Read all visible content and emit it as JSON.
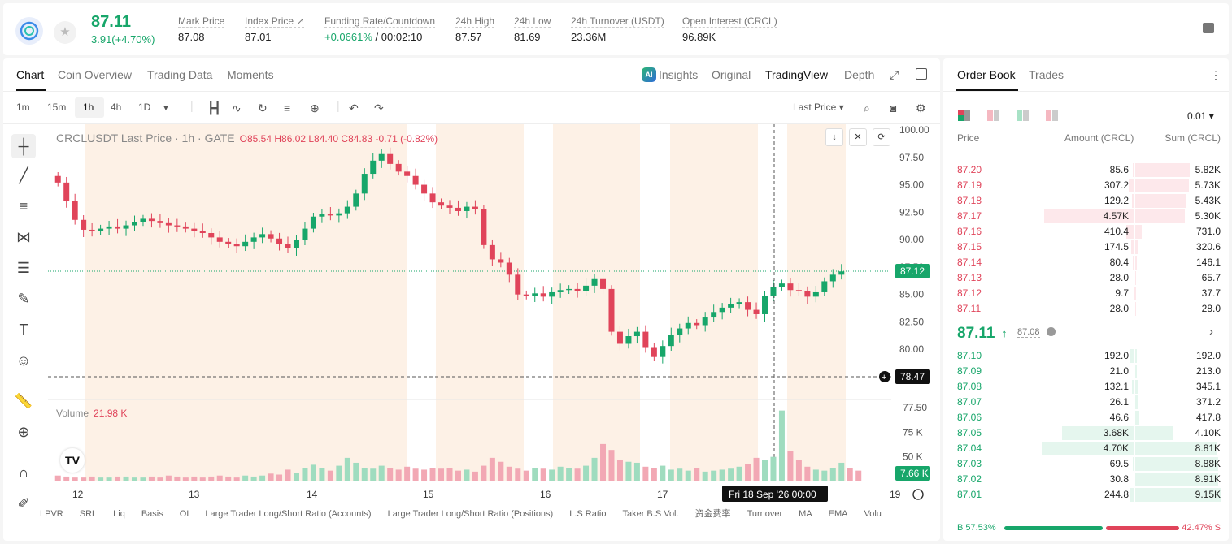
{
  "header": {
    "price": "87.11",
    "change": "3.91(+4.70%)",
    "stats": [
      {
        "label": "Mark Price",
        "value": "87.08"
      },
      {
        "label": "Index Price ↗",
        "value": "87.01"
      },
      {
        "label": "Funding Rate/Countdown",
        "value": "+0.0661%",
        "extra": "/ 00:02:10"
      },
      {
        "label": "24h High",
        "value": "87.57"
      },
      {
        "label": "24h Low",
        "value": "81.69"
      },
      {
        "label": "24h Turnover (USDT)",
        "value": "23.36M"
      },
      {
        "label": "Open Interest (CRCL)",
        "value": "96.89K"
      }
    ]
  },
  "chart_tabs": [
    "Chart",
    "Coin Overview",
    "Trading Data",
    "Moments"
  ],
  "chart_options": {
    "ai": "AI",
    "insights": "Insights",
    "original": "Original",
    "tradingview": "TradingView",
    "depth": "Depth"
  },
  "intervals": [
    "1m",
    "15m",
    "1h",
    "4h",
    "1D"
  ],
  "price_type": "Last Price",
  "legend": {
    "symbol": "CRCLUSDT Last Price · 1h · GATE",
    "ohlc": "O85.54  H86.02  L84.40  C84.83  -0.71  (-0.82%)"
  },
  "volume": {
    "label": "Volume",
    "value": "21.98 K"
  },
  "crosshair": {
    "date": "Fri 18 Sep '26",
    "time": "00:00"
  },
  "price_axis": {
    "ticks": [
      "100.00",
      "97.50",
      "95.00",
      "92.50",
      "90.00",
      "87.50",
      "85.00",
      "82.50",
      "80.00",
      "77.50",
      "75 K",
      "50 K",
      "25 K"
    ],
    "last_price_tag": "87.12",
    "cursor_tag": "78.47",
    "volume_tag": "7.66 K"
  },
  "time_axis": [
    "12",
    "13",
    "14",
    "15",
    "16",
    "17",
    "19"
  ],
  "bottom_tags": [
    "LPVR",
    "SRL",
    "Liq",
    "Basis",
    "OI",
    "Large Trader Long/Short Ratio (Accounts)",
    "Large Trader Long/Short Ratio (Positions)",
    "L.S Ratio",
    "Taker B.S Vol.",
    "资金费率",
    "Turnover",
    "MA",
    "EMA",
    "Volu"
  ],
  "chart_data": {
    "type": "candlestick",
    "title": "CRCLUSDT Last Price · 1h · GATE",
    "ylim": [
      77.5,
      100
    ],
    "last_price": 87.12,
    "x_day_labels": [
      "12",
      "13",
      "14",
      "15",
      "16",
      "17",
      "19"
    ],
    "close_path": [
      95.2,
      93.5,
      91.8,
      90.9,
      90.8,
      91.0,
      91.2,
      91.0,
      91.3,
      91.6,
      91.9,
      91.7,
      91.5,
      91.3,
      91.2,
      91.0,
      90.8,
      90.6,
      90.2,
      89.8,
      89.6,
      89.4,
      89.8,
      90.2,
      90.5,
      90.1,
      89.6,
      89.2,
      90.0,
      91.0,
      92.1,
      92.3,
      92.2,
      92.4,
      93.0,
      94.2,
      96.0,
      97.2,
      97.8,
      96.9,
      96.2,
      95.8,
      95.0,
      94.2,
      93.4,
      93.1,
      92.9,
      92.6,
      93.0,
      92.8,
      89.5,
      88.2,
      87.9,
      86.8,
      85.0,
      84.9,
      85.1,
      84.8,
      85.2,
      85.4,
      85.5,
      85.3,
      85.8,
      86.4,
      85.5,
      81.6,
      80.5,
      81.2,
      81.6,
      80.2,
      79.3,
      80.3,
      81.3,
      81.9,
      82.4,
      82.2,
      82.9,
      83.4,
      83.8,
      84.1,
      84.3,
      83.6,
      83.2,
      84.9,
      85.7,
      86.0,
      85.4,
      85.3,
      84.8,
      85.2,
      86.2,
      86.8,
      87.1
    ],
    "volume_k": [
      6,
      5,
      4,
      4,
      5,
      4,
      4,
      5,
      5,
      4,
      4,
      5,
      4,
      6,
      5,
      4,
      5,
      4,
      5,
      6,
      5,
      4,
      6,
      5,
      6,
      8,
      7,
      12,
      9,
      14,
      17,
      14,
      11,
      16,
      24,
      19,
      14,
      13,
      16,
      14,
      12,
      15,
      13,
      12,
      14,
      13,
      14,
      11,
      12,
      10,
      16,
      24,
      20,
      15,
      13,
      11,
      14,
      13,
      12,
      15,
      14,
      13,
      16,
      24,
      38,
      32,
      22,
      20,
      19,
      15,
      14,
      16,
      12,
      13,
      11,
      14,
      10,
      11,
      12,
      13,
      15,
      18,
      24,
      22,
      25,
      72,
      31,
      22,
      15,
      12,
      11,
      14,
      19,
      14,
      11
    ]
  },
  "orderbook": {
    "tabs": [
      "Order Book",
      "Trades"
    ],
    "precision": "0.01",
    "col_price": "Price",
    "col_amount": "Amount (CRCL)",
    "col_sum": "Sum (CRCL)",
    "asks": [
      {
        "p": "87.20",
        "a": "85.6",
        "s": "5.82K"
      },
      {
        "p": "87.19",
        "a": "307.2",
        "s": "5.73K"
      },
      {
        "p": "87.18",
        "a": "129.2",
        "s": "5.43K"
      },
      {
        "p": "87.17",
        "a": "4.57K",
        "s": "5.30K"
      },
      {
        "p": "87.16",
        "a": "410.4",
        "s": "731.0"
      },
      {
        "p": "87.15",
        "a": "174.5",
        "s": "320.6"
      },
      {
        "p": "87.14",
        "a": "80.4",
        "s": "146.1"
      },
      {
        "p": "87.13",
        "a": "28.0",
        "s": "65.7"
      },
      {
        "p": "87.12",
        "a": "9.7",
        "s": "37.7"
      },
      {
        "p": "87.11",
        "a": "28.0",
        "s": "28.0"
      }
    ],
    "mid": {
      "price": "87.11",
      "arrow": "↑",
      "mark": "87.08"
    },
    "bids": [
      {
        "p": "87.10",
        "a": "192.0",
        "s": "192.0"
      },
      {
        "p": "87.09",
        "a": "21.0",
        "s": "213.0"
      },
      {
        "p": "87.08",
        "a": "132.1",
        "s": "345.1"
      },
      {
        "p": "87.07",
        "a": "26.1",
        "s": "371.2"
      },
      {
        "p": "87.06",
        "a": "46.6",
        "s": "417.8"
      },
      {
        "p": "87.05",
        "a": "3.68K",
        "s": "4.10K"
      },
      {
        "p": "87.04",
        "a": "4.70K",
        "s": "8.81K"
      },
      {
        "p": "87.03",
        "a": "69.5",
        "s": "8.88K"
      },
      {
        "p": "87.02",
        "a": "30.8",
        "s": "8.91K"
      },
      {
        "p": "87.01",
        "a": "244.8",
        "s": "9.15K"
      }
    ],
    "ratio_buy": "B 57.53%",
    "ratio_sell": "42.47% S",
    "ratio_buy_fraction": 0.5753
  },
  "colors": {
    "up": "#17a66a",
    "down": "#e0445a",
    "session": "#fdf1e6"
  }
}
